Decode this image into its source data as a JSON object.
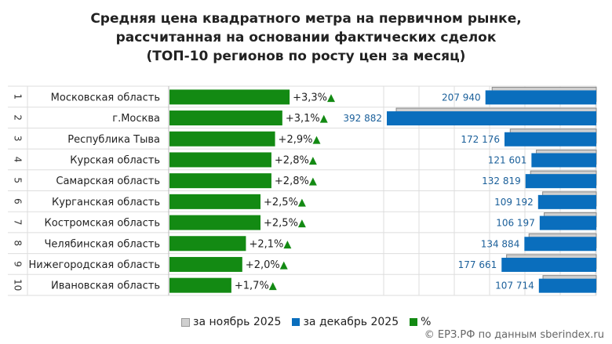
{
  "chart_data": {
    "type": "bar",
    "title": "Средняя цена квадратного метра на первичном рынке, рассчитанная на основании фактических сделок (ТОП-10 регионов по росту цен за месяц)",
    "title_lines": [
      "Средняя цена квадратного метра на первичном рынке,",
      "рассчитанная на основании фактических сделок",
      "(ТОП-10 регионов по росту цен за месяц)"
    ],
    "ranks": [
      "1",
      "2",
      "3",
      "4",
      "5",
      "6",
      "7",
      "8",
      "9",
      "10"
    ],
    "categories": [
      "Московская область",
      "г.Москва",
      "Республика Тыва",
      "Курская область",
      "Самарская область",
      "Курганская область",
      "Костромская область",
      "Челябинская область",
      "Нижегородская область",
      "Ивановская область"
    ],
    "pct_labels": [
      "+3,3%",
      "+3,1%",
      "+2,9%",
      "+2,8%",
      "+2,8%",
      "+2,5%",
      "+2,5%",
      "+2,1%",
      "+2,0%",
      "+1,7%"
    ],
    "series": [
      {
        "name": "%",
        "color": "#138a13",
        "values": [
          3.3,
          3.1,
          2.9,
          2.8,
          2.8,
          2.5,
          2.5,
          2.1,
          2.0,
          1.7
        ]
      },
      {
        "name": "за ноябрь 2025",
        "color": "#c8c8c8",
        "values": [
          201297,
          381070,
          167324,
          118289,
          129201,
          106529,
          103607,
          132110,
          174178,
          105914
        ]
      },
      {
        "name": "за декабрь 2025",
        "color": "#0a6ebd",
        "values": [
          207940,
          392882,
          172176,
          121601,
          132819,
          109192,
          106197,
          134884,
          177661,
          107714
        ]
      }
    ],
    "dec_labels": [
      "207 940",
      "392 882",
      "172 176",
      "121 601",
      "132 819",
      "109 192",
      "106 197",
      "134 884",
      "177 661",
      "107 714"
    ],
    "up_arrow": "▲",
    "legend_position": "bottom",
    "grid": true
  },
  "legend": {
    "nov": "за ноябрь 2025",
    "dec": "за декабрь 2025",
    "pct": "%"
  },
  "credit": "© ЕРЗ.РФ по данным sberindex.ru"
}
